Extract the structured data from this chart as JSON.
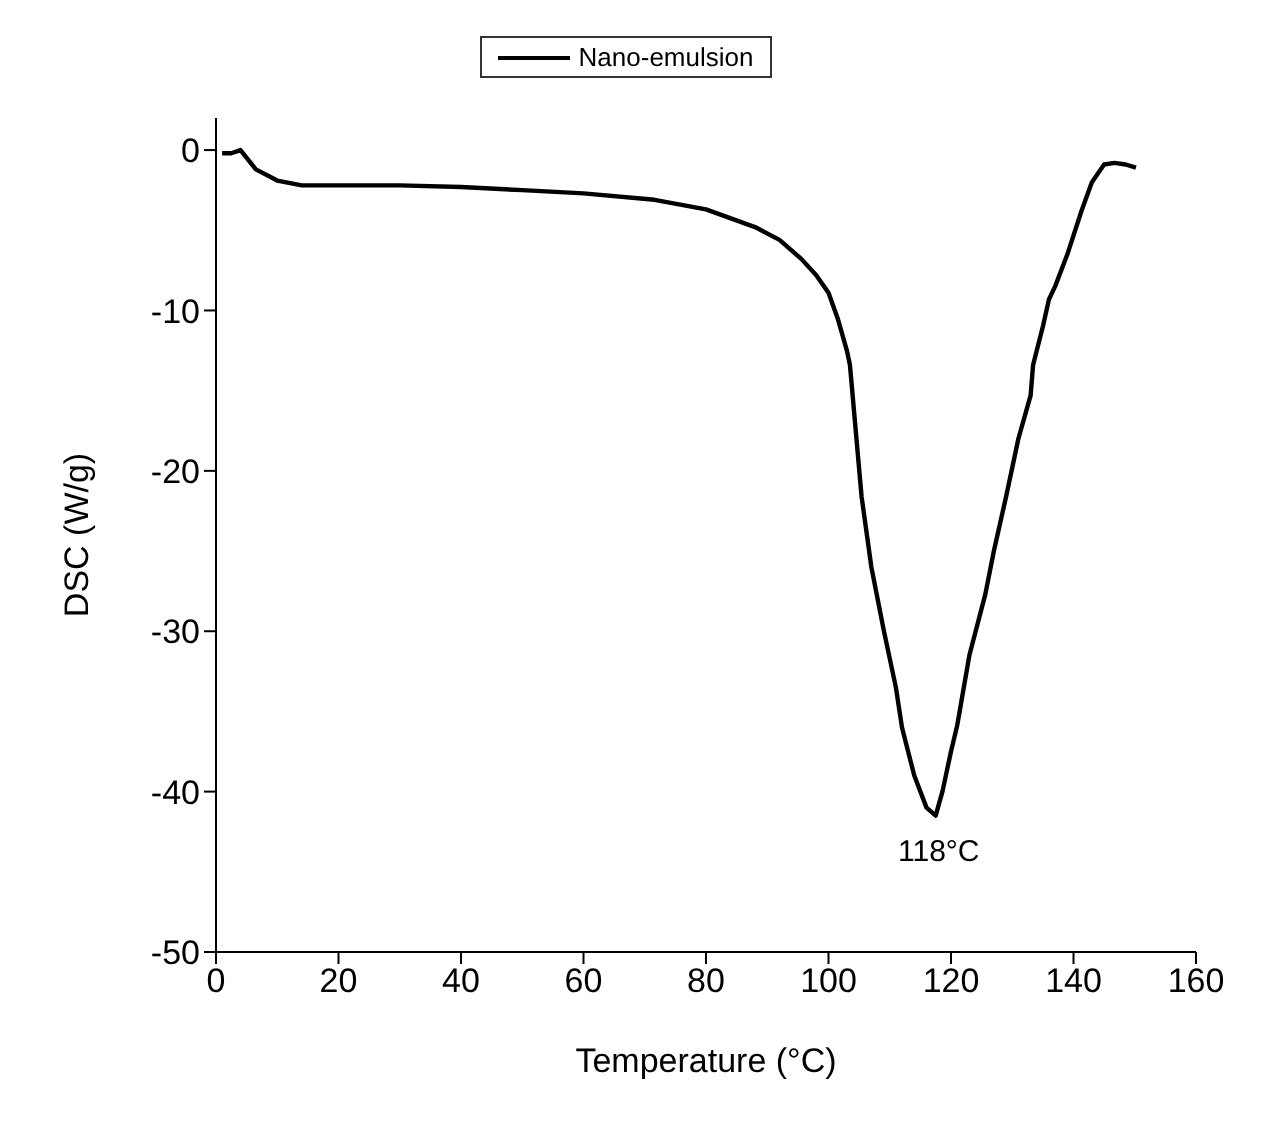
{
  "chart_data": {
    "type": "line",
    "xlabel": "Temperature  (°C)",
    "ylabel": "DSC  (W/g)",
    "xlim": [
      0,
      160
    ],
    "ylim": [
      -50,
      2
    ],
    "xticks": [
      0,
      20,
      40,
      60,
      80,
      100,
      120,
      140,
      160
    ],
    "yticks": [
      -50,
      -40,
      -30,
      -20,
      -10,
      0
    ],
    "grid": false,
    "legend": "top",
    "marker": "none",
    "line_style": "solid",
    "series": [
      {
        "name": "Nano-emulsion",
        "color": "#000000",
        "x": [
          1,
          2.5,
          4,
          6.5,
          10,
          14,
          20,
          30,
          40,
          50,
          60,
          71.6,
          80,
          88,
          92,
          95.6,
          98,
          100,
          101.5,
          103,
          103.5,
          105.4,
          107,
          109,
          111,
          112,
          114,
          116,
          117.5,
          118.6,
          120,
          121,
          123,
          125.6,
          127,
          129,
          131,
          133,
          133.4,
          135,
          136,
          137,
          139,
          141.3,
          143,
          145,
          146.7,
          148.5,
          150.2
        ],
        "values": [
          -0.2,
          -0.2,
          0,
          -1.2,
          -1.9,
          -2.2,
          -2.2,
          -2.2,
          -2.3,
          -2.5,
          -2.7,
          -3.1,
          -3.7,
          -4.8,
          -5.6,
          -6.8,
          -7.8,
          -8.9,
          -10.5,
          -12.5,
          -13.4,
          -21.6,
          -26,
          -29.9,
          -33.5,
          -36,
          -39,
          -41,
          -41.5,
          -40,
          -37.5,
          -35.9,
          -31.5,
          -27.7,
          -25,
          -21.6,
          -18,
          -15.3,
          -13.4,
          -11,
          -9.3,
          -8.5,
          -6.5,
          -3.8,
          -2,
          -0.9,
          -0.8,
          -0.9,
          -1.1
        ]
      }
    ],
    "annotations": [
      {
        "text": "118°C",
        "x": 118,
        "y": -41.5
      }
    ]
  }
}
